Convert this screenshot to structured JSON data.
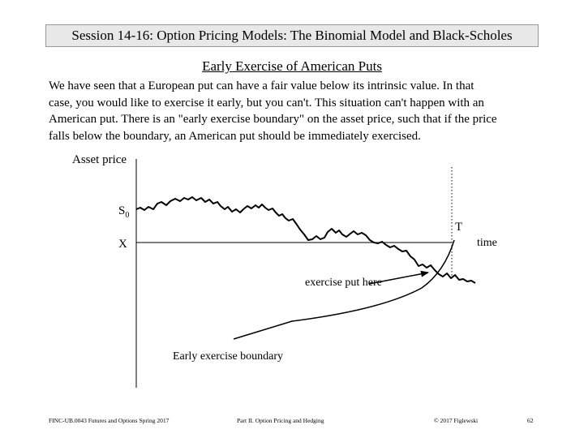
{
  "header": {
    "title": "Session 14-16:  Option Pricing Models:  The Binomial Model and Black-Scholes"
  },
  "slide": {
    "subtitle": "Early Exercise of American Puts",
    "paragraph_lines": [
      "We have seen that a European put can have a fair value below its intrinsic value.  In that",
      "case, you would like to exercise it early, but you can't. This situation can't happen with an",
      "American put.  There is an \"early exercise boundary\" on the asset price, such that if the price",
      "falls below the boundary, an American put should be immediately exercised."
    ]
  },
  "figure": {
    "y_axis_label": "Asset price",
    "s0_label": "S",
    "s0_subscript": "0",
    "x_label": "X",
    "t_label": "T",
    "time_label": "time",
    "exercise_label": "exercise put here",
    "boundary_label": "Early exercise boundary"
  },
  "footer": {
    "course": "FINC-UB.0043  Futures and Options  Spring 2017",
    "part": "Part II. Option Pricing and Hedging",
    "copyright": "© 2017 Figlewski",
    "page": "62"
  }
}
